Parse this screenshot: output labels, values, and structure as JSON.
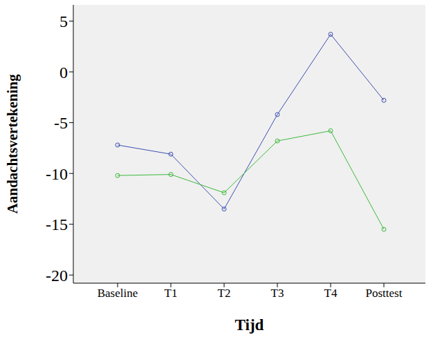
{
  "chart_data": {
    "type": "line",
    "x_label": "Tijd",
    "y_label": "Aandachtsvertekening",
    "categories": [
      "Baseline",
      "T1",
      "T2",
      "T3",
      "T4",
      "Posttest"
    ],
    "series": [
      {
        "color": "#3d4fb0",
        "values": [
          -7.2,
          -8.1,
          -13.5,
          -4.2,
          3.7,
          -2.8
        ],
        "marker": "circle"
      },
      {
        "color": "#3cb83c",
        "values": [
          -10.2,
          -10.1,
          -11.9,
          -6.8,
          -5.8,
          -15.5
        ],
        "marker": "circle"
      }
    ],
    "ylim": [
      -20.8,
      6.6
    ],
    "yticks": [
      -20,
      -15,
      -10,
      -5,
      0,
      5
    ],
    "grid": false
  }
}
